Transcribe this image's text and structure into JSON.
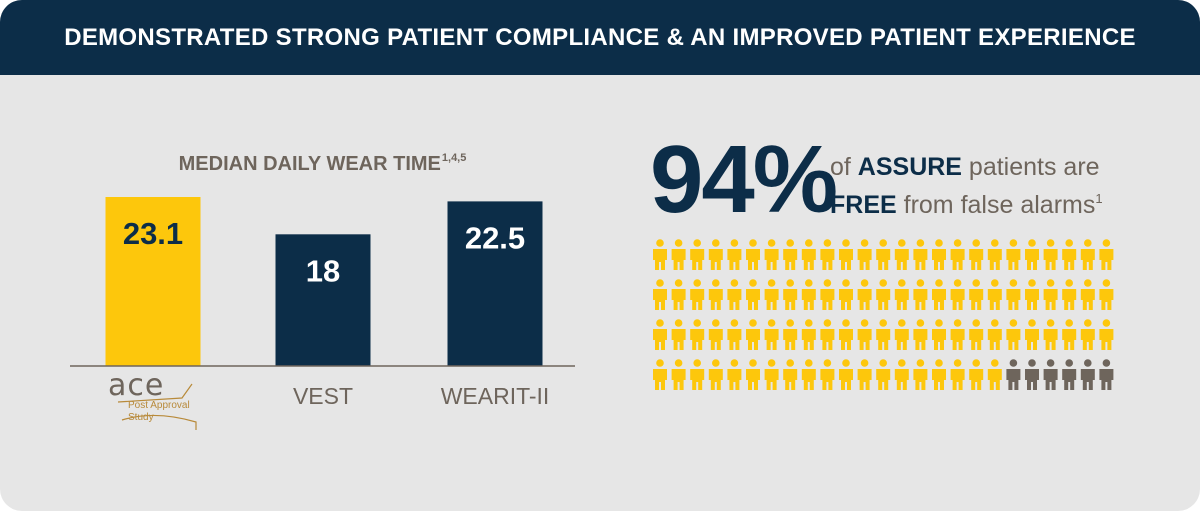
{
  "header": {
    "title": "DEMONSTRATED STRONG PATIENT COMPLIANCE & AN IMPROVED PATIENT EXPERIENCE"
  },
  "chart_data": [
    {
      "type": "bar",
      "title": "MEDIAN DAILY WEAR TIME",
      "title_superscript": "1,4,5",
      "categories": [
        "ACE Post Approval Study",
        "VEST",
        "WEARIT-II"
      ],
      "values": [
        23.1,
        18,
        22.5
      ],
      "value_labels": [
        "23.1",
        "18",
        "22.5"
      ],
      "ylim": [
        0,
        24
      ],
      "grid": false,
      "colors": [
        "#fdc70c",
        "#0c2d48",
        "#0c2d48"
      ]
    },
    {
      "type": "pictograph",
      "headline_value": "94%",
      "text_line1_prefix": "of ",
      "text_line1_bold": "ASSURE",
      "text_line1_suffix": " patients are",
      "text_line2_bold": "FREE",
      "text_line2_suffix": " from false alarms",
      "text_superscript": "1",
      "total_icons": 100,
      "highlighted_icons": 94,
      "colors": {
        "highlighted": "#fdc70c",
        "other": "#6e655c"
      }
    }
  ],
  "logo": {
    "word": "ace",
    "sub_line1": "Post Approval",
    "sub_line2": "Study"
  },
  "colors": {
    "navy": "#0c2d48",
    "gold": "#fdc70c",
    "gray_text": "#6e655c",
    "background": "#e6e6e6",
    "logo_accent": "#b88a3a"
  },
  "icons": [
    "person-icon"
  ]
}
